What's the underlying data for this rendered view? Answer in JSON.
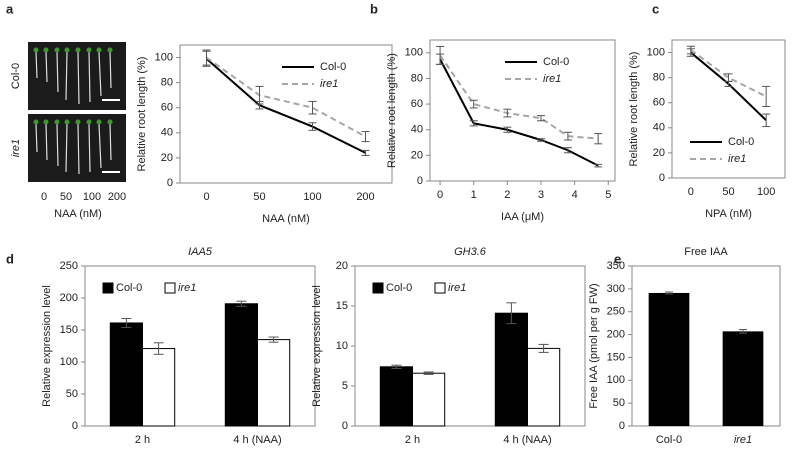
{
  "panel_labels": [
    "a",
    "b",
    "c",
    "d",
    "e"
  ],
  "photo": {
    "row_labels": [
      "Col-0",
      "ire1"
    ],
    "x_labels": [
      "0",
      "50",
      "100",
      "200"
    ],
    "xlabel": "NAA (nM)"
  },
  "chart_data": [
    {
      "type": "line",
      "ylabel": "Relative  root length (%)",
      "xlabel": "NAA (nM)",
      "categories": [
        "0",
        "50",
        "100",
        "200"
      ],
      "ylim": [
        0,
        110
      ],
      "yticks": [
        0,
        20,
        40,
        60,
        80,
        100
      ],
      "legend": "upper right",
      "series": [
        {
          "name": "Col-0",
          "color": "#000000",
          "dashed": false,
          "values": [
            99,
            62,
            45,
            24
          ],
          "errors": [
            6,
            3,
            3,
            2
          ]
        },
        {
          "name": "ire1",
          "color": "#a6a6a6",
          "dashed": true,
          "values": [
            100,
            70,
            60,
            37
          ],
          "errors": [
            6,
            7,
            5,
            4
          ]
        }
      ]
    },
    {
      "type": "line",
      "ylabel": "Relative  root length (%)",
      "xlabel": "IAA (μM)",
      "x": [
        0,
        1,
        2,
        3,
        3.8,
        4.7
      ],
      "xlim": [
        -0.3,
        5.2
      ],
      "xticks": [
        0,
        1,
        2,
        3,
        4,
        5
      ],
      "ylim": [
        0,
        110
      ],
      "yticks": [
        0,
        20,
        40,
        60,
        80,
        100
      ],
      "legend": "upper right",
      "series": [
        {
          "name": "Col-0",
          "color": "#000000",
          "dashed": false,
          "values": [
            95,
            45,
            40,
            32,
            24,
            12
          ],
          "errors": [
            4,
            2,
            2,
            1,
            2,
            1
          ]
        },
        {
          "name": "ire1",
          "color": "#a6a6a6",
          "dashed": true,
          "values": [
            98,
            60,
            53,
            49,
            35,
            33
          ],
          "errors": [
            7,
            3,
            3,
            2,
            3,
            4
          ]
        }
      ]
    },
    {
      "type": "line",
      "ylabel": "Relative  root length (%)",
      "xlabel": "NPA (nM)",
      "categories": [
        "0",
        "50",
        "100"
      ],
      "ylim": [
        0,
        110
      ],
      "yticks": [
        0,
        20,
        40,
        60,
        80,
        100
      ],
      "legend": "lower left",
      "series": [
        {
          "name": "Col-0",
          "color": "#000000",
          "dashed": false,
          "values": [
            100,
            75,
            46
          ],
          "errors": [
            3,
            2,
            5
          ]
        },
        {
          "name": "ire1",
          "color": "#a6a6a6",
          "dashed": true,
          "values": [
            102,
            80,
            65
          ],
          "errors": [
            3,
            3,
            8
          ]
        }
      ]
    },
    {
      "type": "bar",
      "title": "IAA5",
      "italic_title": true,
      "ylabel": "Relative expression level",
      "categories": [
        "2 h",
        "4 h (NAA)"
      ],
      "ylim": [
        0,
        250
      ],
      "yticks": [
        0,
        50,
        100,
        150,
        200,
        250
      ],
      "legend": "upper left",
      "series": [
        {
          "name": "Col-0",
          "color": "#000000",
          "values": [
            161,
            191
          ],
          "errors": [
            7,
            4
          ]
        },
        {
          "name": "ire1",
          "color": "#ffffff",
          "values": [
            121,
            135
          ],
          "errors": [
            9,
            4
          ]
        }
      ]
    },
    {
      "type": "bar",
      "title": "GH3.6",
      "italic_title": true,
      "ylabel": "Relative expression level",
      "categories": [
        "2 h",
        "4 h (NAA)"
      ],
      "ylim": [
        0,
        20
      ],
      "yticks": [
        0,
        5,
        10,
        15,
        20
      ],
      "legend": "upper left",
      "series": [
        {
          "name": "Col-0",
          "color": "#000000",
          "values": [
            7.4,
            14.1
          ],
          "errors": [
            0.2,
            1.3
          ]
        },
        {
          "name": "ire1",
          "color": "#ffffff",
          "values": [
            6.6,
            9.7
          ],
          "errors": [
            0.15,
            0.5
          ]
        }
      ]
    },
    {
      "type": "bar",
      "title": "Free IAA",
      "italic_title": false,
      "ylabel": "Free IAA (pmol per g FW)",
      "categories": [
        "Col-0",
        "ire1"
      ],
      "ylim": [
        0,
        350
      ],
      "yticks": [
        0,
        50,
        100,
        150,
        200,
        250,
        300,
        350
      ],
      "color": "#000000",
      "values": [
        291,
        207
      ],
      "errors": [
        2,
        4
      ]
    }
  ]
}
